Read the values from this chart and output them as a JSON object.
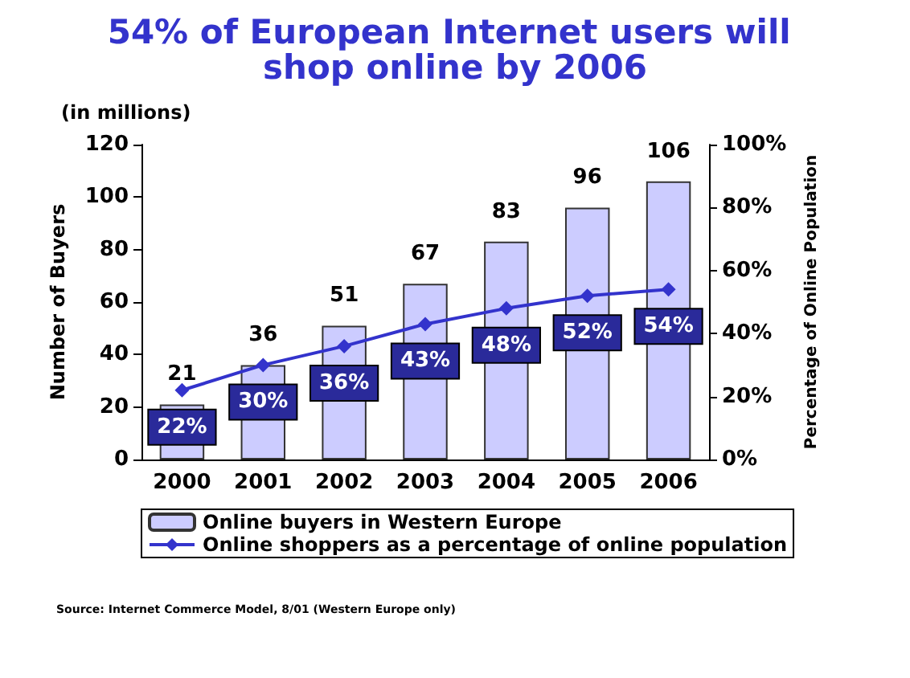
{
  "chart_data": {
    "type": "bar",
    "title": "54% of European Internet users will shop online by 2006",
    "categories": [
      "2000",
      "2001",
      "2002",
      "2003",
      "2004",
      "2005",
      "2006"
    ],
    "series": [
      {
        "name": "Online buyers in Western Europe",
        "color": "#ccccff",
        "values": [
          21,
          36,
          51,
          67,
          83,
          96,
          106
        ]
      },
      {
        "name": "Online shoppers as a percentage of online population",
        "type": "line",
        "axis": "y2",
        "color": "#3333cc",
        "marker": "diamond",
        "values": [
          22,
          30,
          36,
          43,
          48,
          52,
          54
        ],
        "value_labels": [
          "22%",
          "30%",
          "36%",
          "43%",
          "48%",
          "52%",
          "54%"
        ]
      }
    ],
    "ylabel": "Number of Buyers",
    "y2label": "Percentage of Online Population",
    "ylim": [
      0,
      120
    ],
    "yticks": [
      0,
      20,
      40,
      60,
      80,
      100,
      120
    ],
    "y2lim": [
      0,
      100
    ],
    "y2ticks": [
      {
        "value": 0,
        "label": "0%"
      },
      {
        "value": 20,
        "label": "20%"
      },
      {
        "value": 40,
        "label": "40%"
      },
      {
        "value": 60,
        "label": "60%"
      },
      {
        "value": 80,
        "label": "80%"
      },
      {
        "value": 100,
        "label": "100%"
      }
    ],
    "annotations": [
      "(in millions)",
      "Source: Internet Commerce Model, 8/01 (Western Europe only)"
    ],
    "data_labels": true,
    "grid": false,
    "legend": "bottom"
  }
}
